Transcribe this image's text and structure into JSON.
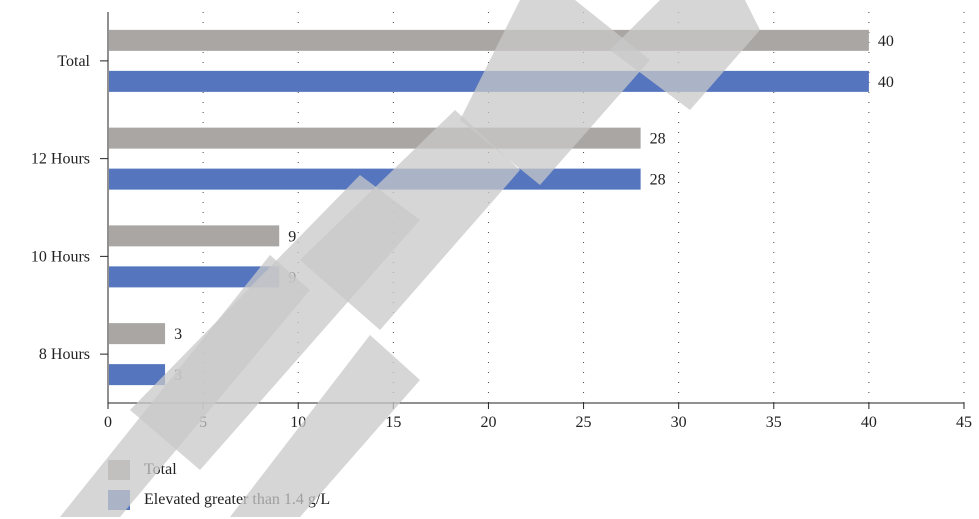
{
  "chart_data": {
    "type": "bar",
    "orientation": "horizontal",
    "categories": [
      "Total",
      "12 Hours",
      "10 Hours",
      "8 Hours"
    ],
    "series": [
      {
        "name": "Total",
        "values": [
          40,
          28,
          9,
          3
        ],
        "color": "#aaa6a4"
      },
      {
        "name": "Elevated greater than 1.4 g/L",
        "values": [
          40,
          28,
          9,
          3
        ],
        "color": "#5575bf"
      }
    ],
    "xlim": [
      0,
      45
    ],
    "xticks": [
      "0",
      "5",
      "10",
      "15",
      "20",
      "25",
      "30",
      "35",
      "40",
      "45"
    ],
    "grid": "vertical dotted",
    "legend_position": "bottom-left",
    "title": "",
    "xlabel": "",
    "ylabel": ""
  },
  "legend": {
    "items": [
      {
        "label": "Total",
        "color": "#aaa6a4"
      },
      {
        "label": "Elevated greater than 1.4 g/L",
        "color": "#5575bf"
      }
    ]
  }
}
